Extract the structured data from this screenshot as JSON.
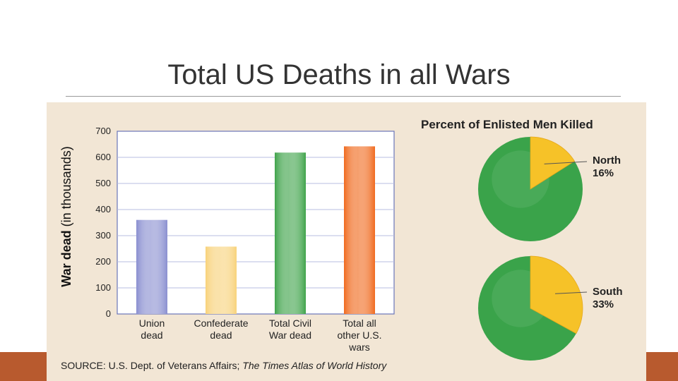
{
  "slide": {
    "title": "Total US Deaths in all Wars"
  },
  "colors": {
    "panel": "#f2e6d5",
    "band": "#b85a2e",
    "pie_green": "#3aa34a",
    "pie_yellow": "#f6c228"
  },
  "chart_data": [
    {
      "type": "bar",
      "ylabel_bold": "War dead",
      "ylabel_rest": "(in thousands)",
      "ylim": [
        0,
        700
      ],
      "yticks": [
        "0",
        "100",
        "200",
        "300",
        "400",
        "500",
        "600",
        "700"
      ],
      "grid": true,
      "categories": [
        {
          "line1": "Union",
          "line2": "dead",
          "line3": ""
        },
        {
          "line1": "Confederate",
          "line2": "dead",
          "line3": ""
        },
        {
          "line1": "Total Civil",
          "line2": "War dead",
          "line3": ""
        },
        {
          "line1": "Total all",
          "line2": "other U.S.",
          "line3": "wars"
        }
      ],
      "values": [
        360,
        258,
        618,
        642
      ],
      "bar_colors": [
        "#8a8fd0",
        "#f8d27a",
        "#3fa34a",
        "#f06a1e"
      ]
    },
    {
      "type": "pie",
      "title": "Percent of Enlisted Men Killed",
      "pies": [
        {
          "label": "North",
          "value_text": "16%",
          "value": 16
        },
        {
          "label": "South",
          "value_text": "33%",
          "value": 33
        }
      ]
    }
  ],
  "source": {
    "prefix": "SOURCE: U.S. Dept. of Veterans Affairs; ",
    "italic": "The Times Atlas of World History"
  }
}
